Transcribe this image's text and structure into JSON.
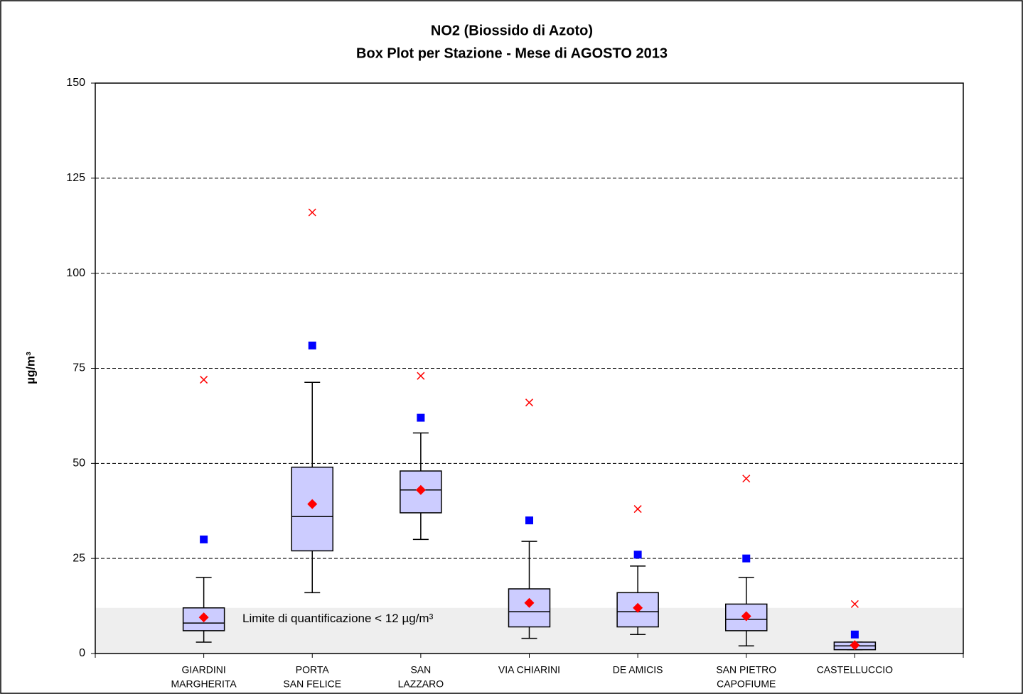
{
  "chart_data": {
    "type": "box",
    "title": "NO2 (Biossido di Azoto)",
    "subtitle": "Box Plot per Stazione - Mese di AGOSTO 2013",
    "y_label": "µg/m³",
    "categories": [
      [
        "GIARDINI",
        "MARGHERITA"
      ],
      [
        "PORTA",
        "SAN FELICE"
      ],
      [
        "SAN",
        "LAZZARO"
      ],
      [
        "VIA CHIARINI"
      ],
      [
        "DE AMICIS"
      ],
      [
        "SAN PIETRO",
        "CAPOFIUME"
      ],
      [
        "CASTELLUCCIO"
      ]
    ],
    "whisker_low": [
      3,
      16,
      30,
      4,
      5,
      2,
      1
    ],
    "q1": [
      6,
      27,
      37,
      7,
      7,
      6,
      1
    ],
    "median": [
      8,
      36,
      43,
      11,
      11,
      9,
      2
    ],
    "q3": [
      12,
      49,
      48,
      17,
      16,
      13,
      3
    ],
    "whisker_high": [
      20,
      71.3,
      58,
      29.5,
      23,
      20,
      3
    ],
    "mean": [
      9.5,
      39.3,
      43,
      13.3,
      12,
      9.8,
      2.2
    ],
    "square": [
      30,
      81,
      62,
      35,
      26,
      25,
      5
    ],
    "max": [
      72,
      116,
      73,
      66,
      38,
      46,
      13
    ],
    "box_color": "#ccccff",
    "mean_color": "#ff0000",
    "square_color": "#0000ff",
    "max_color": "#ff0000",
    "quantification_limit": 12,
    "annotation": "Limite di quantificazione < 12 µg/m³",
    "ylim": [
      0,
      150
    ],
    "yticks": [
      0,
      25,
      50,
      75,
      100,
      125,
      150
    ],
    "grid": true
  }
}
